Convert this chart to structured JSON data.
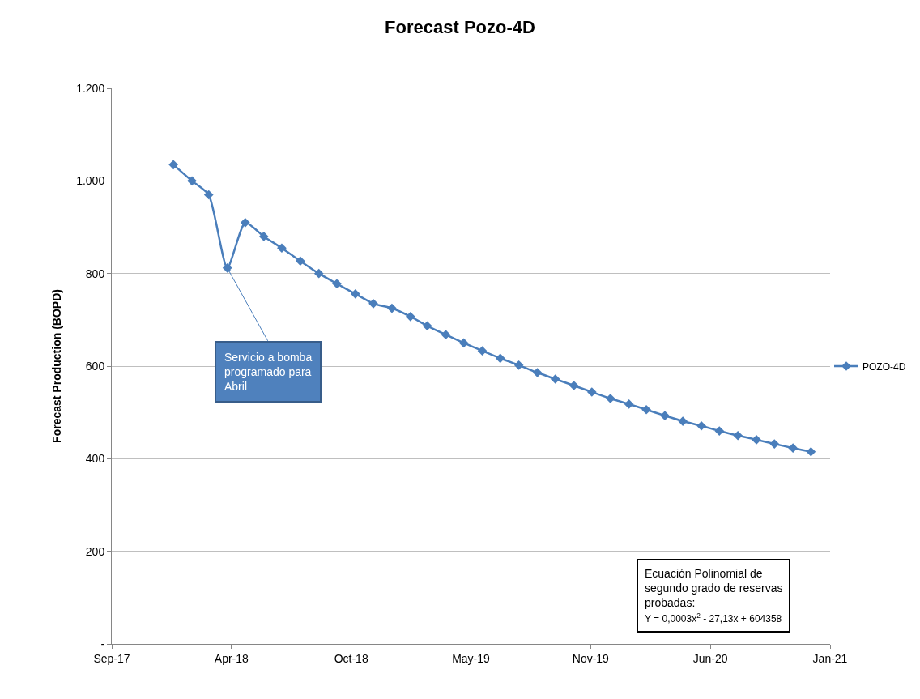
{
  "chart_data": {
    "type": "line",
    "title": "Forecast Pozo-4D",
    "ylabel": "Forecast Production (BOPD)",
    "x": [
      "2018-01",
      "2018-02",
      "2018-03",
      "2018-04",
      "2018-05",
      "2018-06",
      "2018-07",
      "2018-08",
      "2018-09",
      "2018-10",
      "2018-11",
      "2018-12",
      "2019-01",
      "2019-02",
      "2019-03",
      "2019-04",
      "2019-05",
      "2019-06",
      "2019-07",
      "2019-08",
      "2019-09",
      "2019-10",
      "2019-11",
      "2019-12",
      "2020-01",
      "2020-02",
      "2020-03",
      "2020-04",
      "2020-05",
      "2020-06",
      "2020-07",
      "2020-08",
      "2020-09",
      "2020-10",
      "2020-11",
      "2020-12"
    ],
    "series": [
      {
        "name": "POZO-4D",
        "color": "#4a7ebb",
        "values": [
          1035,
          1000,
          970,
          812,
          910,
          880,
          855,
          827,
          800,
          778,
          756,
          735,
          725,
          707,
          687,
          668,
          650,
          633,
          617,
          602,
          586,
          572,
          558,
          544,
          530,
          518,
          506,
          493,
          481,
          471,
          460,
          450,
          441,
          432,
          423,
          415
        ]
      }
    ],
    "xlim": [
      "2017-09-20",
      "2021-01-02"
    ],
    "xticks": [
      {
        "value": "2017-09-20",
        "label": "Sep-17"
      },
      {
        "value": "2018-04-08",
        "label": "Apr-18"
      },
      {
        "value": "2018-10-25",
        "label": "Oct-18"
      },
      {
        "value": "2019-05-13",
        "label": "May-19"
      },
      {
        "value": "2019-11-29",
        "label": "Nov-19"
      },
      {
        "value": "2020-06-16",
        "label": "Jun-20"
      },
      {
        "value": "2021-01-02",
        "label": "Jan-21"
      }
    ],
    "ylim": [
      0,
      1200
    ],
    "yticks": [
      {
        "value": 0,
        "label": "-"
      },
      200,
      400,
      600,
      800,
      {
        "value": 1000,
        "label": "1.000"
      },
      {
        "value": 1200,
        "label": "1.200"
      }
    ],
    "grid": "y",
    "legend": "right",
    "marker": "diamond",
    "line_style": "solid",
    "annotations": [
      {
        "text": "Servicio a bomba programado para Abril",
        "x": "2018-04",
        "y": 812
      },
      "Ecuación Polinomial de segundo grado de reservas probadas:",
      "Y = 0,0003x$^{2}$ - 27,13x + 604358"
    ]
  }
}
